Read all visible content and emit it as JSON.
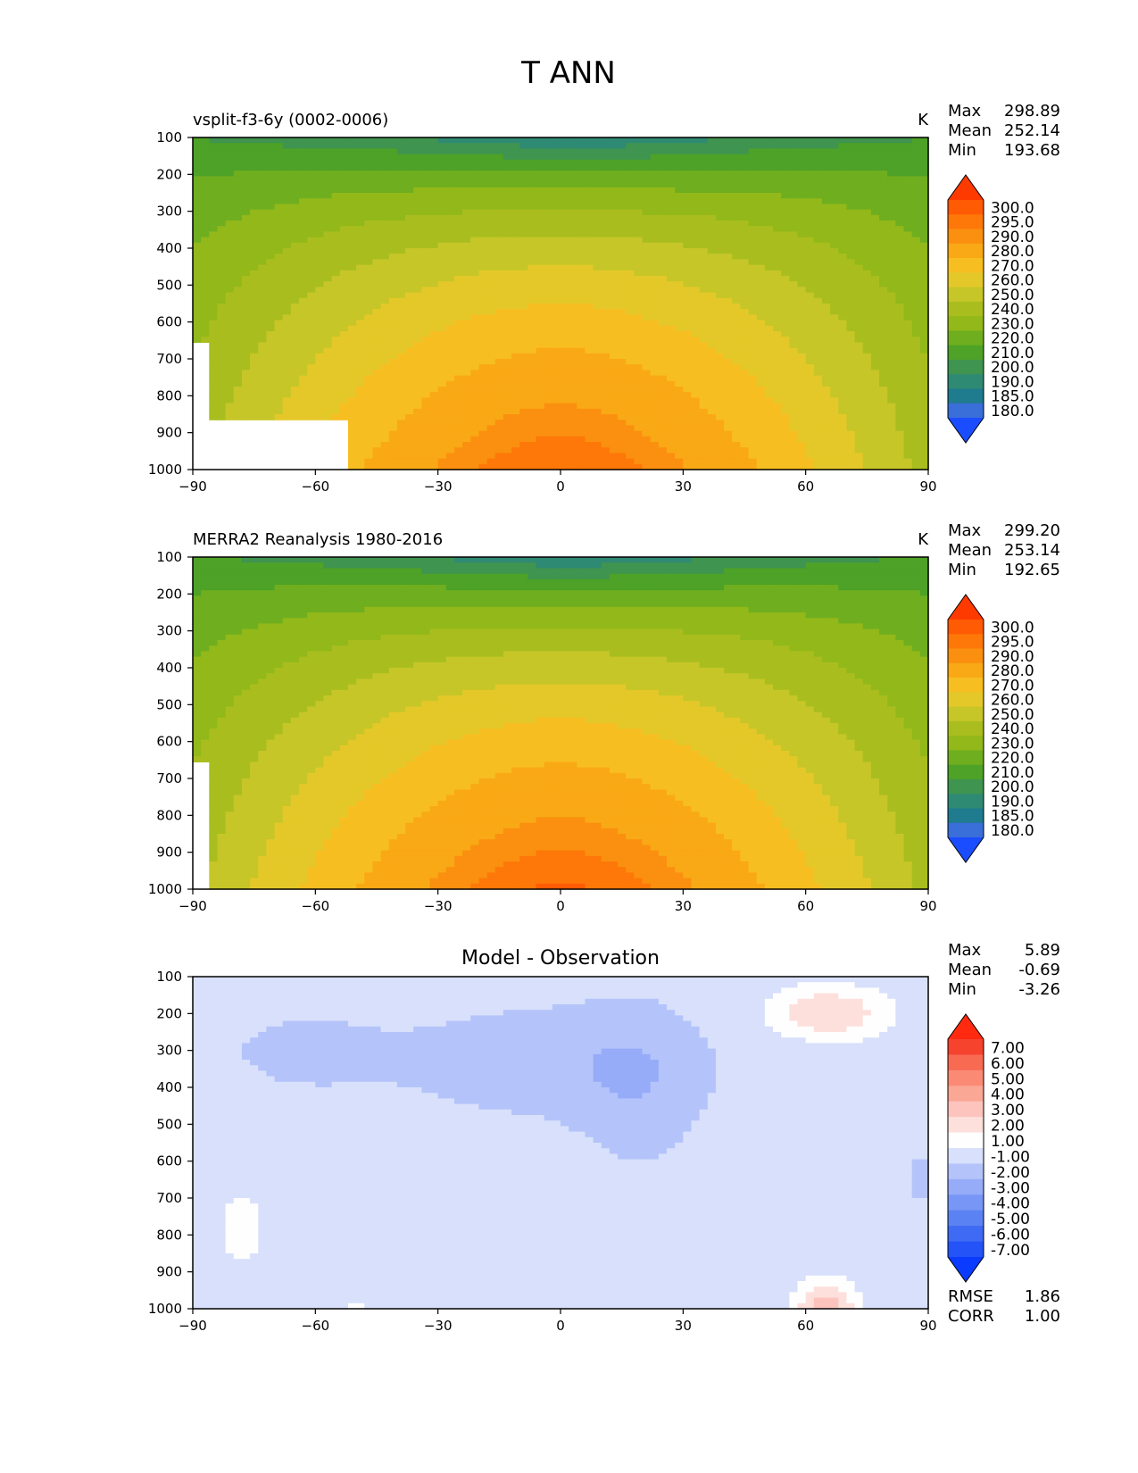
{
  "figure": {
    "title": "T ANN"
  },
  "chart_data": [
    {
      "type": "heatmap",
      "title_left": "vsplit-f3-6y (0002-0006)",
      "title_center": "",
      "units": "K",
      "x_ticks": [
        -90,
        -60,
        -30,
        0,
        30,
        60,
        90
      ],
      "y_ticks": [
        100,
        200,
        300,
        400,
        500,
        600,
        700,
        800,
        900,
        1000
      ],
      "xlim": [
        -90,
        90
      ],
      "ylim": [
        1000,
        100
      ],
      "y_inverted": true,
      "stats": {
        "Max": "298.89",
        "Mean": "252.14",
        "Min": "193.68"
      },
      "colorbar": {
        "extend": "both",
        "labels": [
          "300.0",
          "295.0",
          "290.0",
          "280.0",
          "270.0",
          "260.0",
          "250.0",
          "240.0",
          "230.0",
          "220.0",
          "210.0",
          "200.0",
          "190.0",
          "185.0",
          "180.0"
        ],
        "colors": [
          "#1a4dff",
          "#3a6ed8",
          "#1f7b8e",
          "#2f8a73",
          "#3f9450",
          "#4da227",
          "#6fae1f",
          "#92b81a",
          "#a9be1e",
          "#c6c628",
          "#e4c829",
          "#f7be22",
          "#f9a915",
          "#fb9010",
          "#fd7808",
          "#ff5b05",
          "#ff3a00"
        ]
      },
      "levels_colored_by_rank": [
        180,
        185,
        190,
        200,
        210,
        220,
        230,
        240,
        250,
        260,
        270,
        280,
        290,
        295,
        300
      ]
    },
    {
      "type": "heatmap",
      "title_left": "MERRA2 Reanalysis 1980-2016",
      "title_center": "",
      "units": "K",
      "x_ticks": [
        -90,
        -60,
        -30,
        0,
        30,
        60,
        90
      ],
      "y_ticks": [
        100,
        200,
        300,
        400,
        500,
        600,
        700,
        800,
        900,
        1000
      ],
      "xlim": [
        -90,
        90
      ],
      "ylim": [
        1000,
        100
      ],
      "y_inverted": true,
      "stats": {
        "Max": "299.20",
        "Mean": "253.14",
        "Min": "192.65"
      },
      "colorbar": {
        "extend": "both",
        "labels": [
          "300.0",
          "295.0",
          "290.0",
          "280.0",
          "270.0",
          "260.0",
          "250.0",
          "240.0",
          "230.0",
          "220.0",
          "210.0",
          "200.0",
          "190.0",
          "185.0",
          "180.0"
        ],
        "colors": [
          "#1a4dff",
          "#3a6ed8",
          "#1f7b8e",
          "#2f8a73",
          "#3f9450",
          "#4da227",
          "#6fae1f",
          "#92b81a",
          "#a9be1e",
          "#c6c628",
          "#e4c829",
          "#f7be22",
          "#f9a915",
          "#fb9010",
          "#fd7808",
          "#ff5b05",
          "#ff3a00"
        ]
      }
    },
    {
      "type": "heatmap",
      "title_left": "",
      "title_center": "Model - Observation",
      "units": "",
      "x_ticks": [
        -90,
        -60,
        -30,
        0,
        30,
        60,
        90
      ],
      "y_ticks": [
        100,
        200,
        300,
        400,
        500,
        600,
        700,
        800,
        900,
        1000
      ],
      "xlim": [
        -90,
        90
      ],
      "ylim": [
        1000,
        100
      ],
      "y_inverted": true,
      "stats": {
        "Max": "5.89",
        "Mean": "-0.69",
        "Min": "-3.26"
      },
      "extra_stats": {
        "RMSE": "1.86",
        "CORR": "1.00"
      },
      "colorbar": {
        "extend": "both",
        "labels": [
          "7.00",
          "6.00",
          "5.00",
          "4.00",
          "3.00",
          "2.00",
          "1.00",
          "-1.00",
          "-2.00",
          "-3.00",
          "-4.00",
          "-5.00",
          "-6.00",
          "-7.00"
        ],
        "colors": [
          "#0b3bff",
          "#2454f7",
          "#3f6af3",
          "#5b82f2",
          "#7896f5",
          "#96acf8",
          "#b4c4fa",
          "#d8e0fb",
          "#fefefe",
          "#fde0dc",
          "#fcc4bc",
          "#fba796",
          "#fb8a74",
          "#f96a53",
          "#f5432e",
          "#ff2a10"
        ]
      }
    }
  ]
}
